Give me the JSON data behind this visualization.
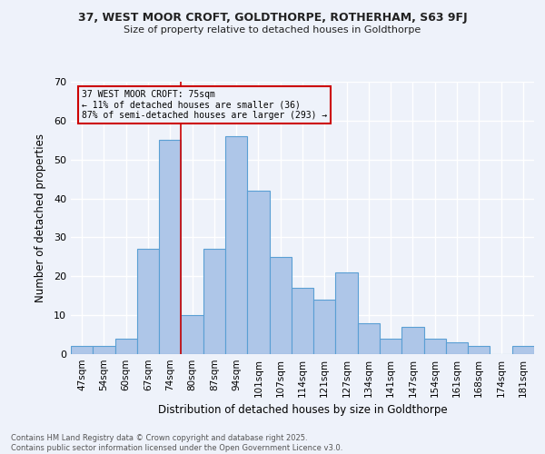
{
  "title1": "37, WEST MOOR CROFT, GOLDTHORPE, ROTHERHAM, S63 9FJ",
  "title2": "Size of property relative to detached houses in Goldthorpe",
  "xlabel": "Distribution of detached houses by size in Goldthorpe",
  "ylabel": "Number of detached properties",
  "bar_labels": [
    "47sqm",
    "54sqm",
    "60sqm",
    "67sqm",
    "74sqm",
    "80sqm",
    "87sqm",
    "94sqm",
    "101sqm",
    "107sqm",
    "114sqm",
    "121sqm",
    "127sqm",
    "134sqm",
    "141sqm",
    "147sqm",
    "154sqm",
    "161sqm",
    "168sqm",
    "174sqm",
    "181sqm"
  ],
  "bar_values": [
    2,
    2,
    4,
    27,
    55,
    10,
    27,
    56,
    42,
    25,
    17,
    14,
    21,
    8,
    4,
    7,
    4,
    3,
    2,
    0,
    2
  ],
  "bar_color": "#aec6e8",
  "bar_edge_color": "#5a9fd4",
  "annotation_text": "37 WEST MOOR CROFT: 75sqm\n← 11% of detached houses are smaller (36)\n87% of semi-detached houses are larger (293) →",
  "vline_color": "#cc0000",
  "box_color": "#cc0000",
  "ylim": [
    0,
    70
  ],
  "yticks": [
    0,
    10,
    20,
    30,
    40,
    50,
    60,
    70
  ],
  "background_color": "#eef2fa",
  "grid_color": "#ffffff",
  "footer1": "Contains HM Land Registry data © Crown copyright and database right 2025.",
  "footer2": "Contains public sector information licensed under the Open Government Licence v3.0."
}
